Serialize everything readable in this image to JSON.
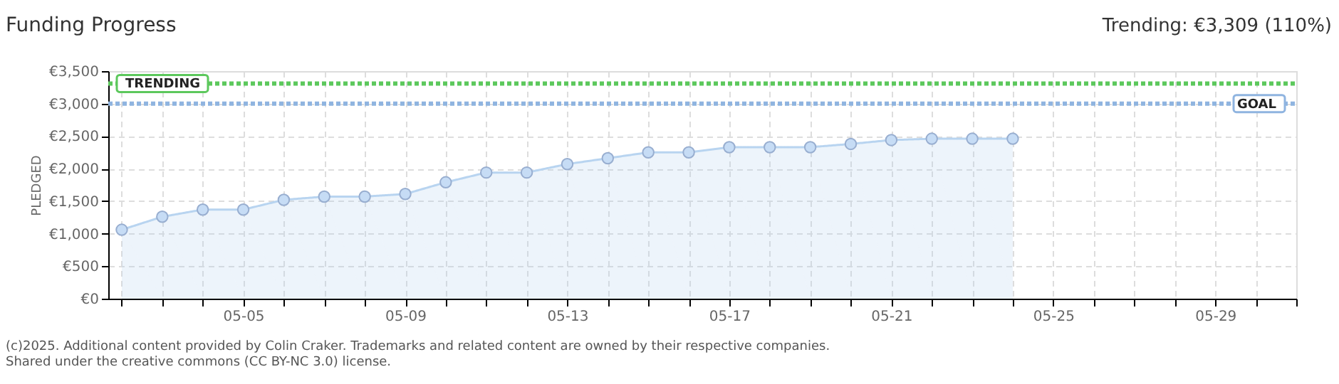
{
  "chart_data": {
    "type": "area",
    "title": "Funding Progress",
    "x": [
      "2025-05-02",
      "2025-05-03",
      "2025-05-04",
      "2025-05-05",
      "2025-05-06",
      "2025-05-07",
      "2025-05-08",
      "2025-05-09",
      "2025-05-10",
      "2025-05-11",
      "2025-05-12",
      "2025-05-13",
      "2025-05-14",
      "2025-05-15",
      "2025-05-16",
      "2025-05-17",
      "2025-05-18",
      "2025-05-19",
      "2025-05-20",
      "2025-05-21",
      "2025-05-22",
      "2025-05-23",
      "2025-05-24"
    ],
    "series": [
      {
        "color": "#b8d4f0",
        "values": [
          1060,
          1260,
          1370,
          1370,
          1520,
          1570,
          1570,
          1610,
          1790,
          1940,
          1940,
          2070,
          2160,
          2250,
          2250,
          2330,
          2330,
          2330,
          2380,
          2440,
          2460,
          2460,
          2460
        ]
      }
    ],
    "marker": "circle",
    "ylabel": "PLEDGED",
    "ylim": [
      0,
      3500
    ],
    "yticks": [
      {
        "value": 0,
        "label": "€0"
      },
      {
        "value": 500,
        "label": "€500"
      },
      {
        "value": 1000,
        "label": "€1,000"
      },
      {
        "value": 1500,
        "label": "€1,500"
      },
      {
        "value": 2000,
        "label": "€2,000"
      },
      {
        "value": 2500,
        "label": "€2,500"
      },
      {
        "value": 3000,
        "label": "€3,000"
      },
      {
        "value": 3500,
        "label": "€3,500"
      }
    ],
    "xlim": [
      "2025-05-01T16:00",
      "2025-05-31"
    ],
    "xticks": [
      {
        "value": "2025-05-02",
        "label": null
      },
      {
        "value": "2025-05-03",
        "label": null
      },
      {
        "value": "2025-05-04",
        "label": null
      },
      {
        "value": "2025-05-05",
        "label": "05-05"
      },
      {
        "value": "2025-05-06",
        "label": null
      },
      {
        "value": "2025-05-07",
        "label": null
      },
      {
        "value": "2025-05-08",
        "label": null
      },
      {
        "value": "2025-05-09",
        "label": "05-09"
      },
      {
        "value": "2025-05-10",
        "label": null
      },
      {
        "value": "2025-05-11",
        "label": null
      },
      {
        "value": "2025-05-12",
        "label": null
      },
      {
        "value": "2025-05-13",
        "label": "05-13"
      },
      {
        "value": "2025-05-14",
        "label": null
      },
      {
        "value": "2025-05-15",
        "label": null
      },
      {
        "value": "2025-05-16",
        "label": null
      },
      {
        "value": "2025-05-17",
        "label": "05-17"
      },
      {
        "value": "2025-05-18",
        "label": null
      },
      {
        "value": "2025-05-19",
        "label": null
      },
      {
        "value": "2025-05-20",
        "label": null
      },
      {
        "value": "2025-05-21",
        "label": "05-21"
      },
      {
        "value": "2025-05-22",
        "label": null
      },
      {
        "value": "2025-05-23",
        "label": null
      },
      {
        "value": "2025-05-24",
        "label": null
      },
      {
        "value": "2025-05-25",
        "label": "05-25"
      },
      {
        "value": "2025-05-26",
        "label": null
      },
      {
        "value": "2025-05-27",
        "label": null
      },
      {
        "value": "2025-05-28",
        "label": null
      },
      {
        "value": "2025-05-29",
        "label": "05-29"
      },
      {
        "value": "2025-05-30",
        "label": null
      },
      {
        "value": "2025-05-31",
        "label": null
      }
    ],
    "grid": true,
    "ref_lines": [
      {
        "axis": "y",
        "value": 3309,
        "label": "TRENDING",
        "color": "#5cc85c",
        "line_style": "dotted"
      },
      {
        "axis": "y",
        "value": 3000,
        "label": "GOAL",
        "color": "#8fb4e0",
        "line_style": "dotted"
      }
    ],
    "annotations": [
      "Trending: €3,309 (110%)",
      "(c)2025. Additional content provided by Colin Craker. Trademarks and related content are owned by their respective companies.",
      "Shared under the creative commons (CC BY-NC 3.0) license."
    ]
  }
}
